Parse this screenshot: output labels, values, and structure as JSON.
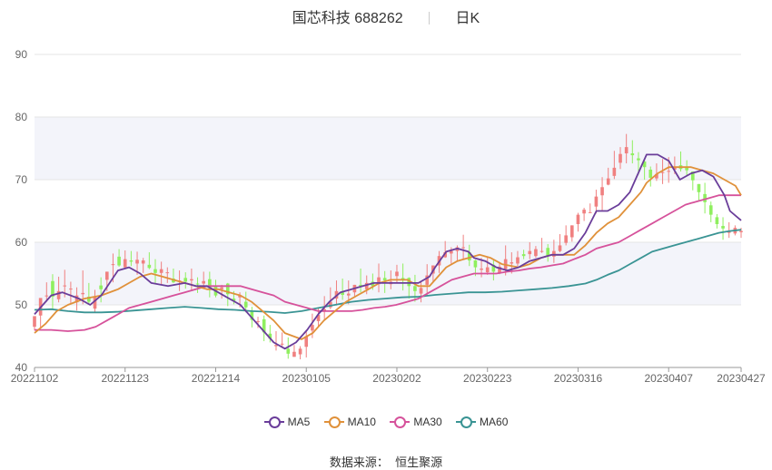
{
  "title": {
    "name": "国芯科技",
    "code": "688262",
    "period": "日K"
  },
  "source": {
    "label": "数据来源：",
    "value": "恒生聚源"
  },
  "colors": {
    "up": "#f08080",
    "down": "#8fef5f",
    "grid": "#e6e6e6",
    "band": "#f3f4fa",
    "ma5": "#6a3d9a",
    "ma10": "#e0913a",
    "ma30": "#d6529b",
    "ma60": "#3a9494"
  },
  "legend": [
    {
      "key": "ma5",
      "label": "MA5",
      "color": "#6a3d9a"
    },
    {
      "key": "ma10",
      "label": "MA10",
      "color": "#e0913a"
    },
    {
      "key": "ma30",
      "label": "MA30",
      "color": "#d6529b"
    },
    {
      "key": "ma60",
      "label": "MA60",
      "color": "#3a9494"
    }
  ],
  "chart_data": {
    "type": "candlestick",
    "ylim": [
      40,
      90
    ],
    "y_ticks": [
      40,
      50,
      60,
      70,
      80,
      90
    ],
    "x_tick_labels": [
      "20221102",
      "20221123",
      "20221214",
      "20230105",
      "20230202",
      "20230223",
      "20230316",
      "20230407",
      "20230427"
    ],
    "candle_count": 118,
    "x_tick_indices": [
      0,
      15,
      30,
      45,
      60,
      75,
      90,
      105,
      117
    ],
    "ma5": [
      [
        0,
        48.5
      ],
      [
        3,
        51.5
      ],
      [
        5,
        52
      ],
      [
        8,
        51
      ],
      [
        10,
        50
      ],
      [
        12,
        51.5
      ],
      [
        15,
        55.5
      ],
      [
        17,
        56
      ],
      [
        19,
        55
      ],
      [
        21,
        53.5
      ],
      [
        24,
        53
      ],
      [
        27,
        53.5
      ],
      [
        29,
        53
      ],
      [
        31,
        53
      ],
      [
        33,
        52
      ],
      [
        35,
        51
      ],
      [
        37,
        50
      ],
      [
        39,
        48
      ],
      [
        41,
        46
      ],
      [
        43,
        44
      ],
      [
        45,
        43
      ],
      [
        47,
        44
      ],
      [
        49,
        46
      ],
      [
        51,
        48.5
      ],
      [
        53,
        50.5
      ],
      [
        55,
        52
      ],
      [
        57,
        52.5
      ],
      [
        59,
        53
      ],
      [
        61,
        53.5
      ],
      [
        63,
        53.5
      ],
      [
        65,
        53.5
      ],
      [
        67,
        53.5
      ],
      [
        69,
        53.5
      ],
      [
        71,
        54.5
      ],
      [
        72,
        56
      ],
      [
        74,
        58.5
      ],
      [
        76,
        59
      ],
      [
        78,
        58.5
      ],
      [
        79,
        57.5
      ],
      [
        81,
        57
      ],
      [
        83,
        56
      ],
      [
        85,
        55.5
      ],
      [
        87,
        56
      ],
      [
        89,
        57
      ],
      [
        91,
        57.5
      ],
      [
        93,
        58
      ],
      [
        95,
        58
      ],
      [
        97,
        59
      ],
      [
        99,
        61.5
      ],
      [
        101,
        65
      ],
      [
        103,
        65
      ],
      [
        105,
        66
      ],
      [
        107,
        68
      ],
      [
        109,
        72
      ],
      [
        110,
        74
      ],
      [
        112,
        74
      ],
      [
        114,
        73
      ],
      [
        116,
        70
      ],
      [
        118,
        71
      ],
      [
        120,
        71.5
      ],
      [
        122,
        70.5
      ],
      [
        124,
        67.5
      ],
      [
        125,
        65
      ],
      [
        127,
        63.5
      ]
    ],
    "ma10": [
      [
        0,
        45.5
      ],
      [
        2,
        47
      ],
      [
        4,
        49
      ],
      [
        6,
        50
      ],
      [
        9,
        51
      ],
      [
        12,
        51.5
      ],
      [
        15,
        52.5
      ],
      [
        17,
        53.5
      ],
      [
        19,
        54.5
      ],
      [
        21,
        55
      ],
      [
        23,
        54.5
      ],
      [
        25,
        54
      ],
      [
        27,
        53.5
      ],
      [
        29,
        53
      ],
      [
        31,
        52.5
      ],
      [
        33,
        52.5
      ],
      [
        35,
        52
      ],
      [
        37,
        51.5
      ],
      [
        39,
        50.5
      ],
      [
        41,
        49
      ],
      [
        43,
        47.5
      ],
      [
        45,
        45.5
      ],
      [
        48,
        44.5
      ],
      [
        50,
        45.5
      ],
      [
        52,
        47.5
      ],
      [
        54,
        49
      ],
      [
        56,
        50.5
      ],
      [
        58,
        51.5
      ],
      [
        60,
        52.5
      ],
      [
        62,
        53.5
      ],
      [
        64,
        54
      ],
      [
        67,
        54
      ],
      [
        69,
        53
      ],
      [
        71,
        53
      ],
      [
        72,
        54
      ],
      [
        74,
        56
      ],
      [
        76,
        57
      ],
      [
        78,
        57.5
      ],
      [
        80,
        58
      ],
      [
        82,
        57.5
      ],
      [
        84,
        56.5
      ],
      [
        87,
        56
      ],
      [
        89,
        56.5
      ],
      [
        91,
        57.5
      ],
      [
        93,
        58
      ],
      [
        95,
        58
      ],
      [
        97,
        58
      ],
      [
        99,
        59.5
      ],
      [
        101,
        61.5
      ],
      [
        103,
        63
      ],
      [
        105,
        64
      ],
      [
        107,
        66
      ],
      [
        109,
        68
      ],
      [
        110,
        69.5
      ],
      [
        112,
        71
      ],
      [
        114,
        72
      ],
      [
        116,
        72
      ],
      [
        118,
        72
      ],
      [
        120,
        71.5
      ],
      [
        122,
        71
      ],
      [
        124,
        70
      ],
      [
        126,
        69
      ],
      [
        127,
        67.5
      ]
    ],
    "ma30": [
      [
        0,
        46
      ],
      [
        3,
        46
      ],
      [
        6,
        45.8
      ],
      [
        9,
        46
      ],
      [
        11,
        46.5
      ],
      [
        13,
        47.5
      ],
      [
        15,
        48.5
      ],
      [
        17,
        49.5
      ],
      [
        19,
        50
      ],
      [
        21,
        50.5
      ],
      [
        23,
        51
      ],
      [
        25,
        51.5
      ],
      [
        27,
        52
      ],
      [
        29,
        52.5
      ],
      [
        31,
        53
      ],
      [
        33,
        53
      ],
      [
        35,
        53
      ],
      [
        37,
        53
      ],
      [
        39,
        52.5
      ],
      [
        41,
        52
      ],
      [
        43,
        51.5
      ],
      [
        45,
        50.5
      ],
      [
        47,
        50
      ],
      [
        49,
        49.5
      ],
      [
        51,
        49
      ],
      [
        53,
        49
      ],
      [
        55,
        49
      ],
      [
        57,
        49
      ],
      [
        59,
        49.2
      ],
      [
        61,
        49.5
      ],
      [
        63,
        49.7
      ],
      [
        65,
        50
      ],
      [
        67,
        50.5
      ],
      [
        69,
        51
      ],
      [
        71,
        52
      ],
      [
        73,
        53
      ],
      [
        75,
        54
      ],
      [
        77,
        54.5
      ],
      [
        79,
        55
      ],
      [
        81,
        55
      ],
      [
        83,
        55
      ],
      [
        85,
        55.3
      ],
      [
        87,
        55.5
      ],
      [
        89,
        55.8
      ],
      [
        91,
        56
      ],
      [
        93,
        56.3
      ],
      [
        95,
        56.6
      ],
      [
        97,
        57.3
      ],
      [
        99,
        58
      ],
      [
        101,
        59
      ],
      [
        103,
        59.5
      ],
      [
        105,
        60
      ],
      [
        107,
        61
      ],
      [
        109,
        62
      ],
      [
        111,
        63
      ],
      [
        113,
        64
      ],
      [
        115,
        65
      ],
      [
        117,
        66
      ],
      [
        119,
        66.5
      ],
      [
        121,
        67
      ],
      [
        123,
        67.5
      ],
      [
        125,
        67.5
      ],
      [
        127,
        67.5
      ]
    ],
    "ma60": [
      [
        0,
        49.2
      ],
      [
        3,
        49.3
      ],
      [
        6,
        49
      ],
      [
        9,
        48.8
      ],
      [
        12,
        48.8
      ],
      [
        15,
        48.9
      ],
      [
        18,
        49.1
      ],
      [
        21,
        49.3
      ],
      [
        24,
        49.5
      ],
      [
        27,
        49.7
      ],
      [
        30,
        49.5
      ],
      [
        33,
        49.3
      ],
      [
        36,
        49.2
      ],
      [
        39,
        49
      ],
      [
        42,
        48.9
      ],
      [
        45,
        48.7
      ],
      [
        48,
        49
      ],
      [
        51,
        49.5
      ],
      [
        54,
        50
      ],
      [
        57,
        50.5
      ],
      [
        60,
        50.8
      ],
      [
        63,
        51
      ],
      [
        66,
        51.2
      ],
      [
        69,
        51.3
      ],
      [
        72,
        51.6
      ],
      [
        75,
        51.8
      ],
      [
        78,
        52
      ],
      [
        81,
        52
      ],
      [
        84,
        52.1
      ],
      [
        87,
        52.3
      ],
      [
        90,
        52.5
      ],
      [
        93,
        52.7
      ],
      [
        96,
        53
      ],
      [
        99,
        53.4
      ],
      [
        101,
        54
      ],
      [
        103,
        54.8
      ],
      [
        105,
        55.5
      ],
      [
        107,
        56.5
      ],
      [
        109,
        57.5
      ],
      [
        111,
        58.5
      ],
      [
        113,
        59
      ],
      [
        115,
        59.5
      ],
      [
        117,
        60
      ],
      [
        119,
        60.5
      ],
      [
        121,
        61
      ],
      [
        123,
        61.5
      ],
      [
        125,
        61.8
      ],
      [
        127,
        62
      ]
    ]
  },
  "candles": [
    [
      46.5,
      48.2,
      47.8,
      45.9
    ],
    [
      48.3,
      51.1,
      48.9,
      46.3
    ],
    [
      51.5,
      51.5,
      53.6,
      50.5
    ],
    [
      53.8,
      51.3,
      54.9,
      49.4
    ],
    [
      50.9,
      52.2,
      54.5,
      50.4
    ],
    [
      53.1,
      53.1,
      55.6,
      51.2
    ],
    [
      52.6,
      52.6,
      53.7,
      50.3
    ],
    [
      50.4,
      51.5,
      52.8,
      49.1
    ],
    [
      51.7,
      51.9,
      55.5,
      50.1
    ],
    [
      51.3,
      50.5,
      53.5,
      50.2
    ],
    [
      49.4,
      51.3,
      52.4,
      48.8
    ],
    [
      53.1,
      52.5,
      54.4,
      50.4
    ],
    [
      54.0,
      55.3,
      55.3,
      52.2
    ],
    [
      56.5,
      56.5,
      58.2,
      53.6
    ],
    [
      57.7,
      56.3,
      58.9,
      56.1
    ],
    [
      56.0,
      57.3,
      58.7,
      55.7
    ],
    [
      57.1,
      56.9,
      58.6,
      56.2
    ],
    [
      56.6,
      57.2,
      58.5,
      54.8
    ],
    [
      56.6,
      57.1,
      57.5,
      55.1
    ],
    [
      56.4,
      55.9,
      58.4,
      55.7
    ],
    [
      55.7,
      55.1,
      57.3,
      53.5
    ],
    [
      55.1,
      55.7,
      56.9,
      53.3
    ],
    [
      55.1,
      55.2,
      56.0,
      53.5
    ],
    [
      54.2,
      53.6,
      55.8,
      53.5
    ],
    [
      53.7,
      53.9,
      55.5,
      52.2
    ],
    [
      54.3,
      53.7,
      55.2,
      52.6
    ],
    [
      53.9,
      54.1,
      55.8,
      52.2
    ],
    [
      53.4,
      53.3,
      54.4,
      51.9
    ],
    [
      53.4,
      53.8,
      55.3,
      52.6
    ],
    [
      54.1,
      52.7,
      55.3,
      51.2
    ],
    [
      52.9,
      51.5,
      54.0,
      51.2
    ],
    [
      52.5,
      52.8,
      53.2,
      51.0
    ],
    [
      53.4,
      51.7,
      53.5,
      49.8
    ],
    [
      51.0,
      50.6,
      52.2,
      50.1
    ],
    [
      51.2,
      51.5,
      52.0,
      49.6
    ],
    [
      50.5,
      49.6,
      52.1,
      48.8
    ],
    [
      49.0,
      47.6,
      49.7,
      46.4
    ],
    [
      47.4,
      47.4,
      48.1,
      46.3
    ],
    [
      47.7,
      45.6,
      48.3,
      44.2
    ],
    [
      45.4,
      44.6,
      46.8,
      44.0
    ],
    [
      43.4,
      43.6,
      45.8,
      42.7
    ],
    [
      43.8,
      43.8,
      45.6,
      43.3
    ],
    [
      43.0,
      42.2,
      44.8,
      41.4
    ],
    [
      41.7,
      42.5,
      43.6,
      41.7
    ],
    [
      42.1,
      43.0,
      43.4,
      41.3
    ],
    [
      43.3,
      45.0,
      46.0,
      41.6
    ],
    [
      45.9,
      46.8,
      48.6,
      44.7
    ],
    [
      47.4,
      48.4,
      49.5,
      46.5
    ],
    [
      48.9,
      49.3,
      51.4,
      47.6
    ],
    [
      49.6,
      50.5,
      52.8,
      49.3
    ],
    [
      51.0,
      52.2,
      53.9,
      49.9
    ],
    [
      52.0,
      51.6,
      54.2,
      50.8
    ],
    [
      51.5,
      51.8,
      53.9,
      50.1
    ],
    [
      52.0,
      53.2,
      53.2,
      51.4
    ],
    [
      53.2,
      53.0,
      55.8,
      52.0
    ],
    [
      52.5,
      53.5,
      54.7,
      51.7
    ],
    [
      53.7,
      53.0,
      55.0,
      52.4
    ],
    [
      53.3,
      54.4,
      56.6,
      52.0
    ],
    [
      54.3,
      53.9,
      55.4,
      51.9
    ],
    [
      53.3,
      53.7,
      55.5,
      52.5
    ],
    [
      54.6,
      55.3,
      56.4,
      53.5
    ],
    [
      54.3,
      54.0,
      56.6,
      52.3
    ],
    [
      54.3,
      53.0,
      54.4,
      51.0
    ],
    [
      53.0,
      52.2,
      54.8,
      50.5
    ],
    [
      51.8,
      52.7,
      53.8,
      50.4
    ],
    [
      53.2,
      54.7,
      56.5,
      51.5
    ],
    [
      55.0,
      56.3,
      56.3,
      53.6
    ],
    [
      56.3,
      57.8,
      58.6,
      55.1
    ],
    [
      57.6,
      58.4,
      60.2,
      57.5
    ],
    [
      58.2,
      58.6,
      59.2,
      56.6
    ],
    [
      58.6,
      59.2,
      59.5,
      57.0
    ],
    [
      59.1,
      59.2,
      61.2,
      57.2
    ],
    [
      58.4,
      57.1,
      59.6,
      56.2
    ],
    [
      57.1,
      56.0,
      57.2,
      54.6
    ],
    [
      55.6,
      55.8,
      57.5,
      54.4
    ],
    [
      55.2,
      56.0,
      57.6,
      54.8
    ],
    [
      56.4,
      55.3,
      57.2,
      53.9
    ],
    [
      55.1,
      56.1,
      56.6,
      54.9
    ],
    [
      55.7,
      57.3,
      59.5,
      54.7
    ],
    [
      56.6,
      56.8,
      58.4,
      55.0
    ],
    [
      56.6,
      57.6,
      58.6,
      56.2
    ],
    [
      58.1,
      57.8,
      58.8,
      57.3
    ],
    [
      58.1,
      58.6,
      60.0,
      57.3
    ],
    [
      57.8,
      58.9,
      59.4,
      57.5
    ],
    [
      58.6,
      58.6,
      60.7,
      58.3
    ],
    [
      59.1,
      57.9,
      59.7,
      56.9
    ],
    [
      57.7,
      58.6,
      60.4,
      56.7
    ],
    [
      58.6,
      59.5,
      61.3,
      58.4
    ],
    [
      59.9,
      61.1,
      62.7,
      59.5
    ],
    [
      60.8,
      62.7,
      62.7,
      60.1
    ],
    [
      62.9,
      64.4,
      64.7,
      61.7
    ],
    [
      64.6,
      65.2,
      65.5,
      63.4
    ],
    [
      64.8,
      64.8,
      66.2,
      64.8
    ],
    [
      65.7,
      67.3,
      68.4,
      64.6
    ],
    [
      67.5,
      68.8,
      70.4,
      65.0
    ],
    [
      69.2,
      70.2,
      71.9,
      69.1
    ],
    [
      70.6,
      71.9,
      74.6,
      70.1
    ],
    [
      72.7,
      74.1,
      75.2,
      71.7
    ],
    [
      74.2,
      75.2,
      77.3,
      72.6
    ],
    [
      74.2,
      73.9,
      76.3,
      72.6
    ],
    [
      73.4,
      73.1,
      74.4,
      70.8
    ],
    [
      72.9,
      72.0,
      73.4,
      70.0
    ],
    [
      71.6,
      70.3,
      72.1,
      68.9
    ],
    [
      70.2,
      70.9,
      72.6,
      69.8
    ],
    [
      71.2,
      71.2,
      73.3,
      69.3
    ],
    [
      71.4,
      71.4,
      73.6,
      69.5
    ],
    [
      71.6,
      72.1,
      73.7,
      70.9
    ],
    [
      72.3,
      71.7,
      74.5,
      71.3
    ],
    [
      71.9,
      71.5,
      73.1,
      70.6
    ],
    [
      71.3,
      69.9,
      71.3,
      68.3
    ],
    [
      69.3,
      68.0,
      69.3,
      66.6
    ],
    [
      67.7,
      66.4,
      69.5,
      64.6
    ],
    [
      65.9,
      64.4,
      66.5,
      63.2
    ],
    [
      64.0,
      62.9,
      64.5,
      62.2
    ],
    [
      62.6,
      62.2,
      64.0,
      60.4
    ],
    [
      61.5,
      61.7,
      63.2,
      60.7
    ],
    [
      61.4,
      62.3,
      62.7,
      61.1
    ],
    [
      61.6,
      61.8,
      62.3,
      60.7
    ]
  ]
}
